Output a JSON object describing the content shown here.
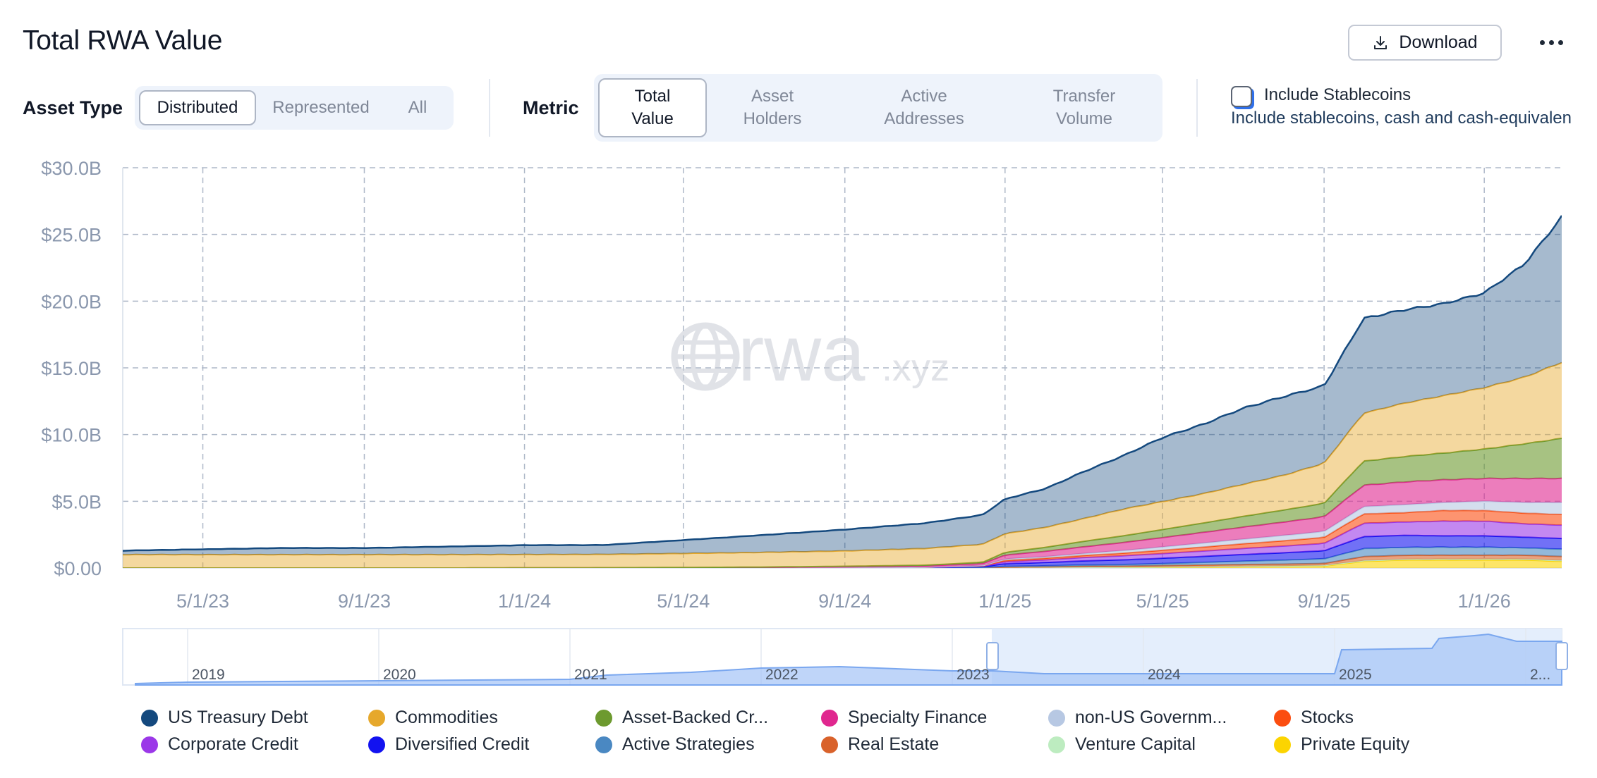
{
  "header": {
    "title": "Total RWA Value",
    "download_label": "Download"
  },
  "controls": {
    "asset_type_label": "Asset Type",
    "asset_type_options": [
      "Distributed",
      "Represented",
      "All"
    ],
    "asset_type_selected": "Distributed",
    "metric_label": "Metric",
    "metric_options": [
      {
        "line1": "Total",
        "line2": "Value"
      },
      {
        "line1": "Asset",
        "line2": "Holders"
      },
      {
        "line1": "Active",
        "line2": "Addresses"
      },
      {
        "line1": "Transfer",
        "line2": "Volume"
      }
    ],
    "metric_selected": "Total Value",
    "stablecoins": {
      "label": "Include Stablecoins",
      "description": "Include stablecoins, cash and cash-equivalen",
      "checked": false
    }
  },
  "watermark": {
    "main": "rwa",
    "suffix": ".xyz"
  },
  "chart_data": {
    "type": "area",
    "stacked": true,
    "y_ticks": [
      "$0.00",
      "$5.0B",
      "$10.0B",
      "$15.0B",
      "$20.0B",
      "$25.0B",
      "$30.0B"
    ],
    "x_ticks": [
      "5/1/23",
      "9/1/23",
      "1/1/24",
      "5/1/24",
      "9/1/24",
      "1/1/25",
      "5/1/25",
      "9/1/25",
      "1/1/26"
    ],
    "ylim": [
      0,
      30
    ],
    "y_unit": "B USD",
    "grid": true,
    "legend_position": "bottom",
    "x": [
      "2023-03-01",
      "2023-05-01",
      "2023-07-01",
      "2023-09-01",
      "2023-11-01",
      "2024-01-01",
      "2024-03-01",
      "2024-05-01",
      "2024-07-01",
      "2024-09-01",
      "2024-11-01",
      "2024-12-15",
      "2025-01-01",
      "2025-02-01",
      "2025-03-01",
      "2025-04-01",
      "2025-05-01",
      "2025-06-01",
      "2025-07-01",
      "2025-08-01",
      "2025-09-01",
      "2025-10-01",
      "2025-11-01",
      "2025-12-01",
      "2026-01-01",
      "2026-02-01",
      "2026-03-01"
    ],
    "series": [
      {
        "name": "Private Equity",
        "color": "#fcd401",
        "values": [
          0,
          0,
          0,
          0,
          0,
          0,
          0,
          0,
          0,
          0,
          0,
          0,
          0.02,
          0.03,
          0.04,
          0.05,
          0.06,
          0.08,
          0.1,
          0.12,
          0.15,
          0.5,
          0.6,
          0.6,
          0.6,
          0.6,
          0.5
        ]
      },
      {
        "name": "Venture Capital",
        "color": "#bdecc0",
        "values": [
          0,
          0,
          0,
          0,
          0,
          0,
          0,
          0,
          0,
          0,
          0,
          0,
          0,
          0,
          0.01,
          0.01,
          0.02,
          0.02,
          0.03,
          0.03,
          0.04,
          0.05,
          0.05,
          0.06,
          0.06,
          0.06,
          0.06
        ]
      },
      {
        "name": "Real Estate",
        "color": "#d9622b",
        "values": [
          0,
          0,
          0,
          0,
          0,
          0,
          0,
          0,
          0,
          0.01,
          0.02,
          0.03,
          0.05,
          0.06,
          0.08,
          0.08,
          0.1,
          0.12,
          0.13,
          0.14,
          0.15,
          0.3,
          0.3,
          0.3,
          0.3,
          0.3,
          0.3
        ]
      },
      {
        "name": "Active Strategies",
        "color": "#4a88c2",
        "values": [
          0,
          0,
          0,
          0,
          0,
          0,
          0,
          0,
          0,
          0,
          0,
          0.02,
          0.05,
          0.07,
          0.1,
          0.12,
          0.15,
          0.2,
          0.25,
          0.3,
          0.35,
          0.6,
          0.6,
          0.6,
          0.6,
          0.55,
          0.55
        ]
      },
      {
        "name": "Diversified Credit",
        "color": "#1212f0",
        "values": [
          0,
          0,
          0,
          0,
          0,
          0,
          0,
          0,
          0,
          0,
          0.02,
          0.05,
          0.2,
          0.25,
          0.3,
          0.35,
          0.4,
          0.45,
          0.5,
          0.55,
          0.6,
          0.9,
          0.9,
          0.85,
          0.85,
          0.8,
          0.8
        ]
      },
      {
        "name": "Corporate Credit",
        "color": "#9b38e8",
        "values": [
          0,
          0,
          0,
          0,
          0,
          0,
          0,
          0,
          0,
          0.01,
          0.02,
          0.05,
          0.15,
          0.2,
          0.25,
          0.3,
          0.35,
          0.4,
          0.45,
          0.5,
          0.55,
          1.0,
          1.0,
          1.1,
          1.1,
          1.0,
          1.0
        ]
      },
      {
        "name": "Stocks",
        "color": "#fb4d10",
        "values": [
          0,
          0,
          0,
          0,
          0,
          0,
          0,
          0,
          0,
          0,
          0,
          0.01,
          0.1,
          0.12,
          0.15,
          0.2,
          0.25,
          0.3,
          0.35,
          0.4,
          0.45,
          0.7,
          0.7,
          0.8,
          0.8,
          0.8,
          0.8
        ]
      },
      {
        "name": "non-US Government Debt",
        "color": "#b7c8e3",
        "values": [
          0,
          0,
          0,
          0,
          0,
          0,
          0,
          0,
          0,
          0,
          0,
          0.02,
          0.1,
          0.12,
          0.15,
          0.2,
          0.25,
          0.3,
          0.35,
          0.4,
          0.45,
          0.55,
          0.6,
          0.6,
          0.7,
          0.8,
          0.9
        ]
      },
      {
        "name": "Specialty Finance",
        "color": "#e0278f",
        "values": [
          0,
          0,
          0,
          0,
          0,
          0.01,
          0.02,
          0.03,
          0.05,
          0.08,
          0.1,
          0.15,
          0.3,
          0.4,
          0.5,
          0.6,
          0.7,
          0.8,
          0.9,
          1.0,
          1.1,
          1.6,
          1.7,
          1.7,
          1.7,
          1.8,
          1.8
        ]
      },
      {
        "name": "Asset-Backed Credit",
        "color": "#6d9a2f",
        "values": [
          0,
          0,
          0,
          0,
          0,
          0,
          0,
          0.01,
          0.02,
          0.03,
          0.05,
          0.1,
          0.2,
          0.3,
          0.4,
          0.5,
          0.6,
          0.7,
          0.8,
          0.9,
          1.0,
          1.8,
          1.9,
          2.0,
          2.2,
          2.6,
          3.0
        ]
      },
      {
        "name": "Commodities",
        "color": "#e6a82b",
        "values": [
          1.0,
          1.0,
          1.0,
          1.0,
          1.0,
          1.0,
          1.0,
          1.05,
          1.1,
          1.15,
          1.25,
          1.35,
          1.4,
          1.5,
          1.7,
          2.0,
          2.1,
          2.2,
          2.4,
          2.6,
          3.0,
          3.6,
          4.0,
          4.3,
          4.6,
          5.0,
          5.7
        ]
      },
      {
        "name": "US Treasury Debt",
        "color": "#14497e",
        "values": [
          0.3,
          0.4,
          0.5,
          0.5,
          0.6,
          0.7,
          0.7,
          1.0,
          1.3,
          1.6,
          1.9,
          2.2,
          2.6,
          2.9,
          3.5,
          4.0,
          4.8,
          5.2,
          5.7,
          5.9,
          5.8,
          7.1,
          7.0,
          6.9,
          7.1,
          8.5,
          10.9
        ]
      }
    ],
    "navigator": {
      "year_labels": [
        "2019",
        "2020",
        "2021",
        "2022",
        "2023",
        "2024",
        "2025",
        "2..."
      ]
    }
  },
  "legend": [
    {
      "label": "US Treasury Debt",
      "color": "#14497e"
    },
    {
      "label": "Commodities",
      "color": "#e6a82b"
    },
    {
      "label": "Asset-Backed Cr...",
      "color": "#6d9a2f"
    },
    {
      "label": "Specialty Finance",
      "color": "#e0278f"
    },
    {
      "label": "non-US Governm...",
      "color": "#b7c8e3"
    },
    {
      "label": "Stocks",
      "color": "#fb4d10"
    },
    {
      "label": "Corporate Credit",
      "color": "#9b38e8"
    },
    {
      "label": "Diversified Credit",
      "color": "#1212f0"
    },
    {
      "label": "Active Strategies",
      "color": "#4a88c2"
    },
    {
      "label": "Real Estate",
      "color": "#d9622b"
    },
    {
      "label": "Venture Capital",
      "color": "#bdecc0"
    },
    {
      "label": "Private Equity",
      "color": "#fcd401"
    }
  ]
}
